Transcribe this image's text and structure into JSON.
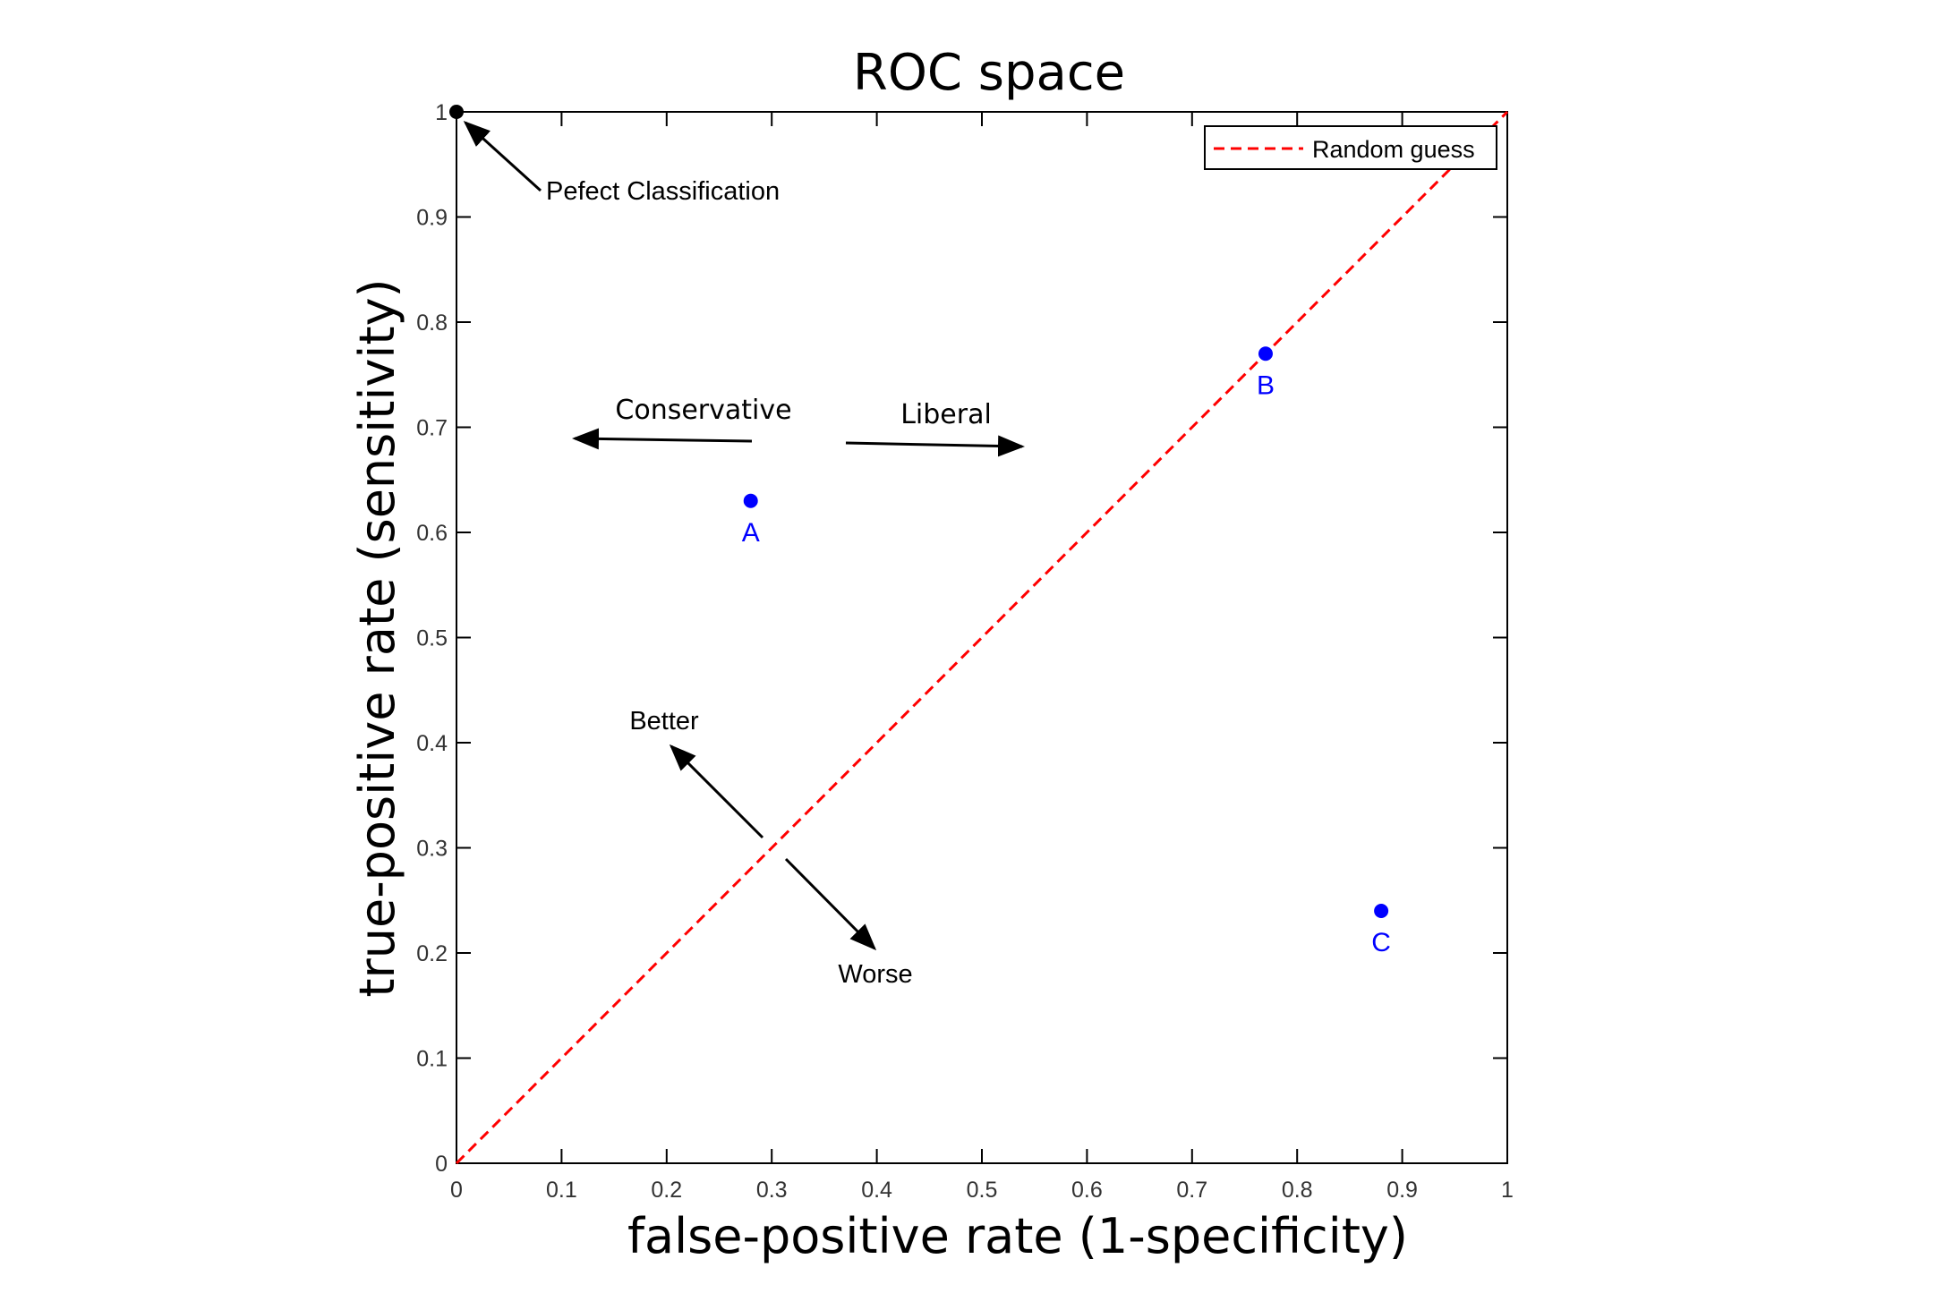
{
  "chart_data": {
    "type": "scatter",
    "title": "ROC space",
    "xlabel": "false-positive rate (1-specificity)",
    "ylabel": "true-positive rate (sensitivity)",
    "xlim": [
      0,
      1
    ],
    "ylim": [
      0,
      1
    ],
    "grid": false,
    "legend_placement": "top-right",
    "x_ticks": [
      "0",
      "0.1",
      "0.2",
      "0.3",
      "0.4",
      "0.5",
      "0.6",
      "0.7",
      "0.8",
      "0.9",
      "1"
    ],
    "y_ticks": [
      "0",
      "0.1",
      "0.2",
      "0.3",
      "0.4",
      "0.5",
      "0.6",
      "0.7",
      "0.8",
      "0.9",
      "1"
    ],
    "series": [
      {
        "name": "Random guess",
        "style": "dashed-line",
        "color": "#ff0000",
        "x": [
          0,
          1
        ],
        "y": [
          0,
          1
        ]
      }
    ],
    "points": [
      {
        "label": "A",
        "x": 0.28,
        "y": 0.63,
        "color": "#0000ff"
      },
      {
        "label": "B",
        "x": 0.77,
        "y": 0.77,
        "color": "#0000ff"
      },
      {
        "label": "C",
        "x": 0.88,
        "y": 0.24,
        "color": "#0000ff"
      },
      {
        "label": "",
        "x": 0,
        "y": 1,
        "color": "#000000"
      }
    ],
    "annotations": {
      "perfect": "Pefect Classification",
      "conservative": "Conservative",
      "liberal": "Liberal",
      "better": "Better",
      "worse": "Worse"
    }
  }
}
